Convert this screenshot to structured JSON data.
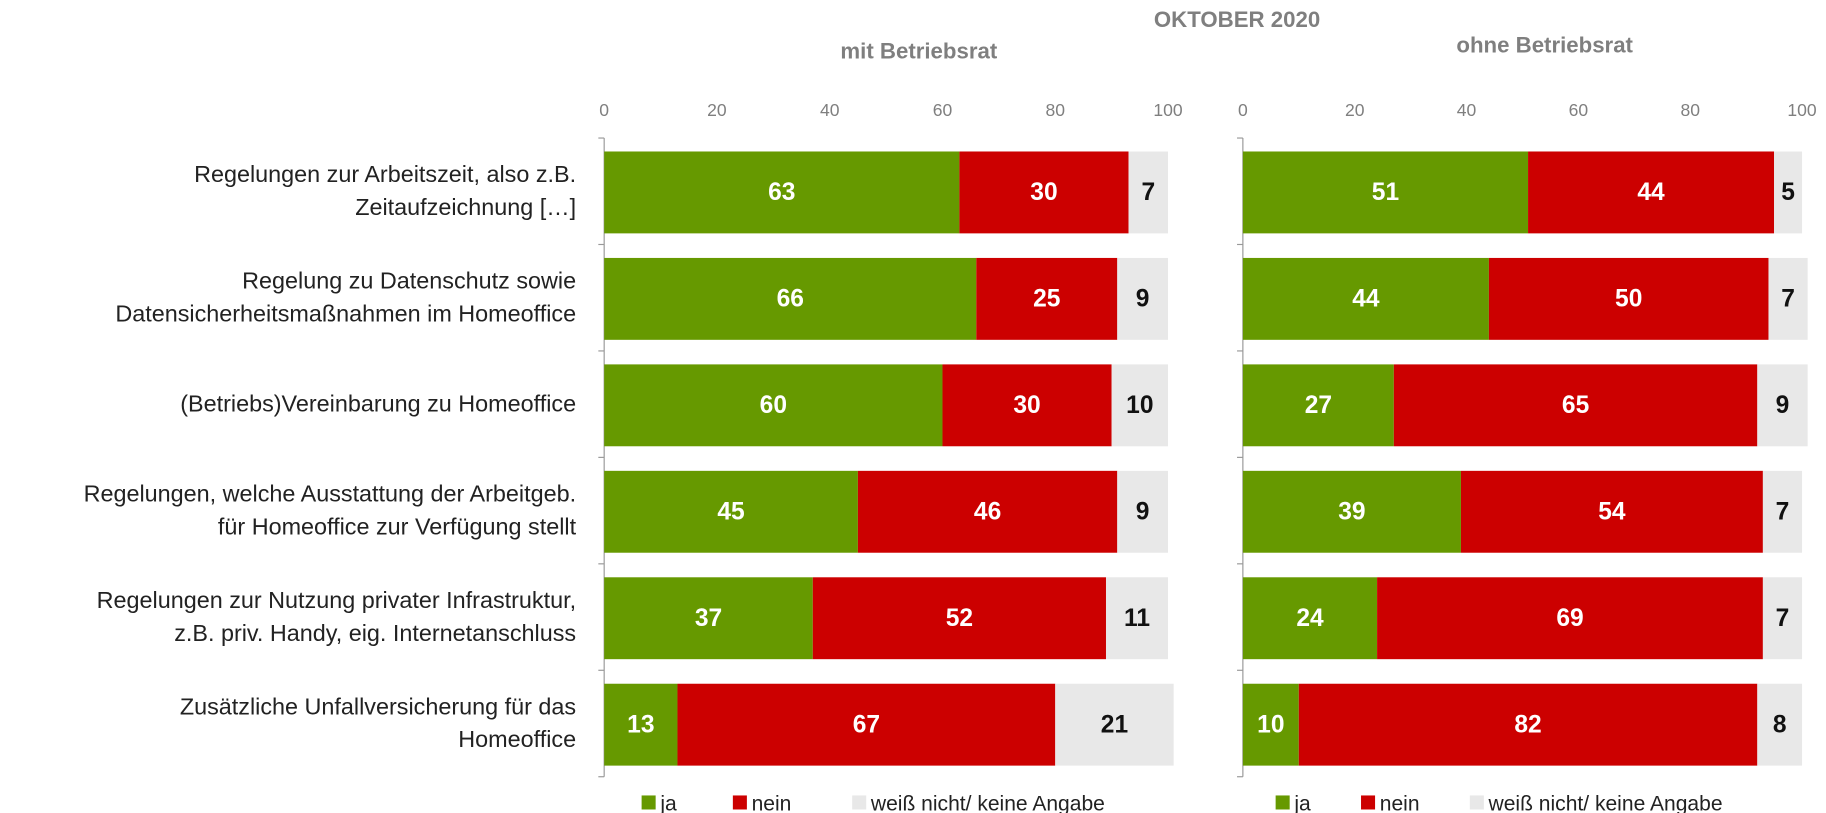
{
  "title": "OKTOBER 2020",
  "chart_data": [
    {
      "type": "bar",
      "orientation": "horizontal",
      "stacked": true,
      "title": "mit Betriebsrat",
      "categories": [
        [
          "Regelungen zur Arbeitszeit, also z.B.",
          "Zeitaufzeichnung […]"
        ],
        [
          "Regelung zu Datenschutz sowie",
          "Datensicherheitsmaßnahmen im Homeoffice"
        ],
        [
          "(Betriebs)Vereinbarung zu Homeoffice"
        ],
        [
          "Regelungen, welche Ausstattung der Arbeitgeb.",
          "für Homeoffice zur Verfügung stellt"
        ],
        [
          "Regelungen zur Nutzung privater Infrastruktur,",
          "z.B. priv. Handy, eig. Internetanschluss"
        ],
        [
          "Zusätzliche Unfallversicherung für das",
          "Homeoffice"
        ]
      ],
      "series": [
        {
          "name": "ja",
          "color": "#669900",
          "values": [
            63,
            66,
            60,
            45,
            37,
            13
          ]
        },
        {
          "name": "nein",
          "color": "#cc0000",
          "values": [
            30,
            25,
            30,
            46,
            52,
            67
          ]
        },
        {
          "name": "weiß nicht/ keine Angabe",
          "color": "#e8e8e8",
          "values": [
            7,
            9,
            10,
            9,
            11,
            21
          ]
        }
      ],
      "xlim": [
        0,
        100
      ],
      "xticks": [
        0,
        20,
        40,
        60,
        80,
        100
      ]
    },
    {
      "type": "bar",
      "orientation": "horizontal",
      "stacked": true,
      "title": "ohne Betriebsrat",
      "series": [
        {
          "name": "ja",
          "color": "#669900",
          "values": [
            51,
            44,
            27,
            39,
            24,
            10
          ]
        },
        {
          "name": "nein",
          "color": "#cc0000",
          "values": [
            44,
            50,
            65,
            54,
            69,
            82
          ]
        },
        {
          "name": "weiß nicht/ keine Angabe",
          "color": "#e8e8e8",
          "values": [
            5,
            7,
            9,
            7,
            7,
            8
          ]
        }
      ],
      "xlim": [
        0,
        100
      ],
      "xticks": [
        0,
        20,
        40,
        60,
        80,
        100
      ]
    }
  ]
}
